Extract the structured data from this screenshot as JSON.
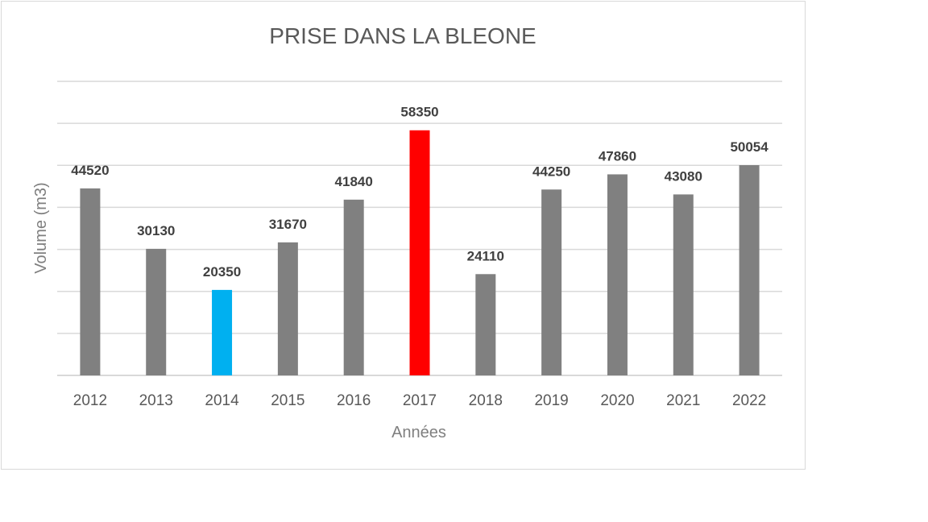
{
  "chart_data": {
    "type": "bar",
    "title": "PRISE DANS LA BLEONE",
    "xlabel": "Années",
    "ylabel": "Volume (m3)",
    "categories": [
      "2012",
      "2013",
      "2014",
      "2015",
      "2016",
      "2017",
      "2018",
      "2019",
      "2020",
      "2021",
      "2022"
    ],
    "series": [
      {
        "values": [
          44520,
          30130,
          20350,
          31670,
          41840,
          58350,
          24110,
          44250,
          47860,
          43080,
          50054
        ]
      }
    ],
    "data_labels": [
      "44520",
      "30130",
      "20350",
      "31670",
      "41840",
      "58350",
      "24110",
      "44250",
      "47860",
      "43080",
      "50054"
    ],
    "bar_colors": [
      "#808080",
      "#808080",
      "#00b0f0",
      "#808080",
      "#808080",
      "#ff0000",
      "#808080",
      "#808080",
      "#808080",
      "#808080",
      "#808080"
    ],
    "ylim": [
      0,
      70000
    ],
    "y_gridline_step": 10000,
    "y_tick_labels_shown": false,
    "grid": true,
    "legend": "none"
  }
}
